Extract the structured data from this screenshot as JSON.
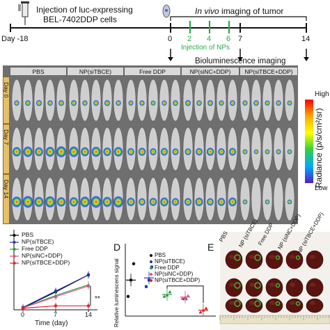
{
  "timeline": {
    "injection_cells_line1": "Injection of luc-expressing",
    "injection_cells_line2": "BEL-7402DDP cells",
    "imaging_prefix": "In vivo",
    "imaging_suffix": " imaging of tumor",
    "day_start": "Day -18",
    "ticks": [
      "0",
      "2",
      "4",
      "6",
      "7",
      "14"
    ],
    "injection_nps": "Injection of NPs",
    "bioluminescence": "Bioluminescence imaging"
  },
  "imaging": {
    "groups": [
      "PBS",
      "NP(siTBCE)",
      "Free DDP",
      "NP(siNC+DDP)",
      "NP(siTBCE+DDP)"
    ],
    "days": [
      "Day 0",
      "Day 7",
      "Day 14"
    ],
    "colorbar": {
      "high": "High",
      "low": "Low",
      "label": "Radiance (p/s/cm²/sr)"
    }
  },
  "panel_c": {
    "legend": [
      "PBS",
      "NP(siTBCE)",
      "Free DDP",
      "NP(siNC+DDP)",
      "NP(siTBCE+DDP)"
    ],
    "xlabel": "Time (day)",
    "xticks": [
      "0",
      "7",
      "14"
    ],
    "significance": "**",
    "colors": [
      "#000000",
      "#2233aa",
      "#2a9a3a",
      "#e0508a",
      "#dd2222"
    ]
  },
  "panel_d": {
    "letter": "D",
    "ylabel": "Relative luminescens signal",
    "legend": [
      "PBS",
      "NP(siTBCE)",
      "Free DDP",
      "NP(siNC+DDP)",
      "NP(siTBCE+DDP)"
    ],
    "significance": "**"
  },
  "panel_e": {
    "letter": "E",
    "groups": [
      "PBS",
      "NP (siTBCE)",
      "Free DDP",
      "NP (siNC+DDP)",
      "NP (siTBCE+DDP)"
    ]
  },
  "chart_data": [
    {
      "type": "line",
      "x": [
        0,
        7,
        14
      ],
      "xlabel": "Time (day)",
      "series": [
        {
          "name": "PBS",
          "values": [
            0.05,
            0.45,
            0.88
          ]
        },
        {
          "name": "NP(siTBCE)",
          "values": [
            0.06,
            0.47,
            0.88
          ]
        },
        {
          "name": "Free DDP",
          "values": [
            0.05,
            0.36,
            0.63
          ]
        },
        {
          "name": "NP(siNC+DDP)",
          "values": [
            0.05,
            0.33,
            0.6
          ]
        },
        {
          "name": "NP(siTBCE+DDP)",
          "values": [
            0.04,
            0.1,
            0.1
          ]
        }
      ]
    },
    {
      "type": "scatter",
      "ylabel": "Relative luminescens signal",
      "categories": [
        "PBS",
        "NP(siTBCE)",
        "Free DDP",
        "NP(siNC+DDP)",
        "NP(siTBCE+DDP)"
      ],
      "series": [
        {
          "name": "PBS",
          "values": [
            0.3,
            0.55,
            0.8
          ]
        },
        {
          "name": "NP(siTBCE)",
          "values": [
            0.45,
            0.55,
            0.75
          ]
        },
        {
          "name": "Free DDP",
          "values": [
            0.3,
            0.32,
            0.37
          ]
        },
        {
          "name": "NP(siNC+DDP)",
          "values": [
            0.27,
            0.29,
            0.31
          ]
        },
        {
          "name": "NP(siTBCE+DDP)",
          "values": [
            0.06,
            0.09,
            0.12
          ]
        }
      ]
    }
  ]
}
